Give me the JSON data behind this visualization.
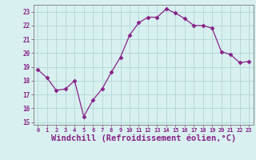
{
  "x": [
    0,
    1,
    2,
    3,
    4,
    5,
    6,
    7,
    8,
    9,
    10,
    11,
    12,
    13,
    14,
    15,
    16,
    17,
    18,
    19,
    20,
    21,
    22,
    23
  ],
  "y": [
    18.8,
    18.2,
    17.3,
    17.4,
    18.0,
    15.4,
    16.6,
    17.4,
    18.6,
    19.7,
    21.3,
    22.2,
    22.6,
    22.6,
    23.2,
    22.9,
    22.5,
    22.0,
    22.0,
    21.8,
    20.1,
    19.9,
    19.3,
    19.4
  ],
  "line_color": "#882288",
  "marker": "D",
  "marker_size": 2.5,
  "bg_color": "#d8f0f0",
  "grid_color": "#b8dada",
  "xlabel": "Windchill (Refroidissement éolien,°C)",
  "xlabel_fontsize": 7.5,
  "xlabel_color": "#882288",
  "tick_color": "#882288",
  "ylim_min": 14.8,
  "ylim_max": 23.5,
  "yticks": [
    15,
    16,
    17,
    18,
    19,
    20,
    21,
    22,
    23
  ],
  "xticks": [
    0,
    1,
    2,
    3,
    4,
    5,
    6,
    7,
    8,
    9,
    10,
    11,
    12,
    13,
    14,
    15,
    16,
    17,
    18,
    19,
    20,
    21,
    22,
    23
  ]
}
